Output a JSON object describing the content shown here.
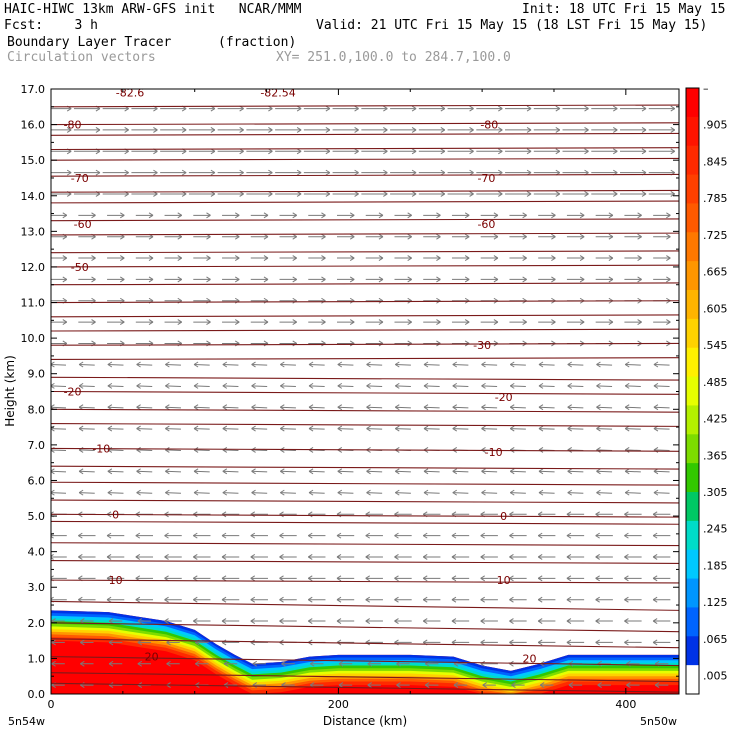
{
  "header": {
    "title": "HAIC-HIWC 13km ARW-GFS init   NCAR/MMM",
    "init": "Init: 18 UTC Fri 15 May 15",
    "fcst": "Fcst:    3 h",
    "valid": "Valid: 21 UTC Fri 15 May 15 (18 LST Fri 15 May 15)",
    "field": "Boundary Layer Tracer",
    "units": "(fraction)",
    "vectors": "Circulation vectors",
    "xy": "XY= 251.0,100.0 to 284.7,100.0"
  },
  "chart_data": {
    "type": "heatmap",
    "xlabel": "Distance (km)",
    "ylabel": "Height (km)",
    "xlim": [
      0,
      437
    ],
    "ylim": [
      0,
      17
    ],
    "x_ticks": [
      "0",
      "200",
      "400"
    ],
    "y_ticks": [
      "0.0",
      "1.0",
      "2.0",
      "3.0",
      "4.0",
      "5.0",
      "6.0",
      "7.0",
      "8.0",
      "9.0",
      "10.0",
      "11.0",
      "12.0",
      "13.0",
      "14.0",
      "15.0",
      "16.0",
      "17.0"
    ],
    "x_end_labels": {
      "left": "5n54w",
      "right": "5n50w"
    },
    "colorbar": {
      "labels": [
        "–",
        ".905",
        ".845",
        ".785",
        ".725",
        ".665",
        ".605",
        ".545",
        ".485",
        ".425",
        ".365",
        ".305",
        ".245",
        ".185",
        ".125",
        ".065",
        ".005"
      ],
      "colors": [
        "#ff0000",
        "#ff1400",
        "#ff2a00",
        "#ff4000",
        "#ff5a00",
        "#ff7800",
        "#ff9600",
        "#ffb400",
        "#ffd200",
        "#fff000",
        "#e6ff00",
        "#b4f000",
        "#7ddc00",
        "#32c800",
        "#00c864",
        "#00dcc8",
        "#00c8ff",
        "#0096ff",
        "#0064ff",
        "#0032e6",
        "#ffffff"
      ]
    },
    "tracer_top": [
      [
        0,
        2.35
      ],
      [
        40,
        2.3
      ],
      [
        80,
        2.05
      ],
      [
        100,
        1.8
      ],
      [
        115,
        1.4
      ],
      [
        128,
        1.1
      ],
      [
        140,
        0.85
      ],
      [
        160,
        0.9
      ],
      [
        180,
        1.05
      ],
      [
        200,
        1.1
      ],
      [
        250,
        1.1
      ],
      [
        280,
        1.05
      ],
      [
        300,
        0.8
      ],
      [
        320,
        0.65
      ],
      [
        340,
        0.85
      ],
      [
        360,
        1.1
      ],
      [
        400,
        1.1
      ],
      [
        437,
        1.1
      ]
    ],
    "temp_contours": [
      {
        "label": "-82.6",
        "x": 55,
        "y": 16.9
      },
      {
        "label": "-82.54",
        "x": 158,
        "y": 16.9
      },
      {
        "label": "-80",
        "x": 15,
        "y": 16.0
      },
      {
        "label": "-80",
        "x": 305,
        "y": 16.0
      },
      {
        "label": "-70",
        "x": 20,
        "y": 14.5
      },
      {
        "label": "-70",
        "x": 303,
        "y": 14.5
      },
      {
        "label": "-60",
        "x": 22,
        "y": 13.2
      },
      {
        "label": "-60",
        "x": 303,
        "y": 13.2
      },
      {
        "label": "-50",
        "x": 20,
        "y": 12.0
      },
      {
        "label": "-30",
        "x": 300,
        "y": 9.8
      },
      {
        "label": "-20",
        "x": 15,
        "y": 8.5
      },
      {
        "label": "-20",
        "x": 315,
        "y": 8.35
      },
      {
        "label": "-10",
        "x": 35,
        "y": 6.9
      },
      {
        "label": "-10",
        "x": 308,
        "y": 6.8
      },
      {
        "label": "0",
        "x": 45,
        "y": 5.05
      },
      {
        "label": "0",
        "x": 315,
        "y": 5.0
      },
      {
        "label": "10",
        "x": 45,
        "y": 3.2
      },
      {
        "label": "10",
        "x": 315,
        "y": 3.2
      },
      {
        "label": "20",
        "x": 70,
        "y": 1.05
      },
      {
        "label": "20",
        "x": 333,
        "y": 1.0
      }
    ]
  }
}
